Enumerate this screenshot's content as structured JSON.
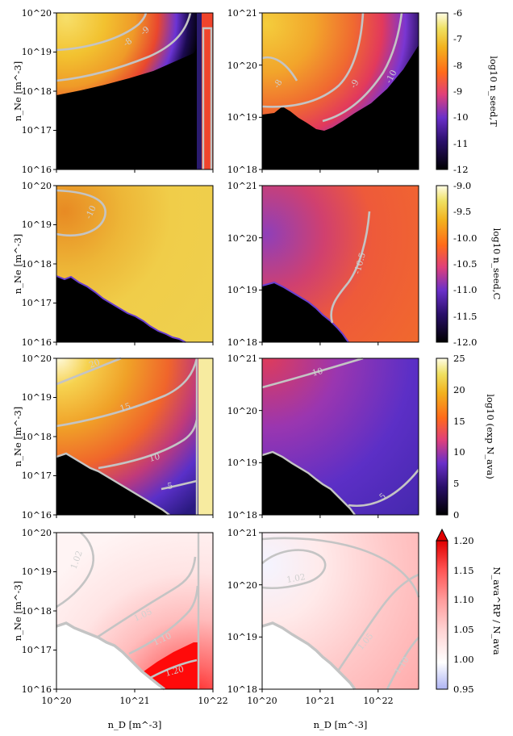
{
  "colors": {
    "contour": "#c4c4c4",
    "frame": "#000000",
    "masked": "#000000"
  },
  "chart_data": [
    {
      "type": "heatmap",
      "panel": "row1-left",
      "xlabel": "",
      "ylabel": "n_Ne [m^-3]",
      "xlim": [
        1e+20,
        1e+22
      ],
      "ylim": [
        1e+16,
        1e+20
      ],
      "ytick_labels": [
        "10^16",
        "10^17",
        "10^18",
        "10^19",
        "10^20"
      ],
      "contour_labels": [
        "-8",
        "-9"
      ]
    },
    {
      "type": "heatmap",
      "panel": "row1-right",
      "xlabel": "",
      "ylabel": "",
      "xlim": [
        1e+20,
        5e+22
      ],
      "ylim": [
        1e+18,
        1e+21
      ],
      "ytick_labels": [
        "10^18",
        "10^19",
        "10^20",
        "10^21"
      ],
      "contour_labels": [
        "-8",
        "-9",
        "-10"
      ]
    },
    {
      "type": "heatmap",
      "panel": "row2-left",
      "xlabel": "",
      "ylabel": "n_Ne [m^-3]",
      "xlim": [
        1e+20,
        1e+22
      ],
      "ylim": [
        1e+16,
        1e+20
      ],
      "ytick_labels": [
        "10^16",
        "10^17",
        "10^18",
        "10^19",
        "10^20"
      ],
      "contour_labels": [
        "-10"
      ]
    },
    {
      "type": "heatmap",
      "panel": "row2-right",
      "xlabel": "",
      "ylabel": "",
      "xlim": [
        1e+20,
        5e+22
      ],
      "ylim": [
        1e+18,
        1e+21
      ],
      "ytick_labels": [
        "10^18",
        "10^19",
        "10^20",
        "10^21"
      ],
      "contour_labels": [
        "-10.5"
      ]
    },
    {
      "type": "heatmap",
      "panel": "row3-left",
      "xlabel": "",
      "ylabel": "n_Ne [m^-3]",
      "xlim": [
        1e+20,
        1e+22
      ],
      "ylim": [
        1e+16,
        1e+20
      ],
      "ytick_labels": [
        "10^16",
        "10^17",
        "10^18",
        "10^19",
        "10^20"
      ],
      "contour_labels": [
        "20",
        "15",
        "10",
        "5"
      ]
    },
    {
      "type": "heatmap",
      "panel": "row3-right",
      "xlabel": "",
      "ylabel": "",
      "xlim": [
        1e+20,
        5e+22
      ],
      "ylim": [
        1e+18,
        1e+21
      ],
      "ytick_labels": [
        "10^18",
        "10^19",
        "10^20",
        "10^21"
      ],
      "contour_labels": [
        "10",
        "5"
      ]
    },
    {
      "type": "heatmap",
      "panel": "row4-left",
      "xlabel": "n_D [m^-3]",
      "ylabel": "n_Ne [m^-3]",
      "xlim": [
        1e+20,
        1e+22
      ],
      "ylim": [
        1e+16,
        1e+20
      ],
      "xtick_labels": [
        "10^20",
        "10^21",
        "10^22"
      ],
      "ytick_labels": [
        "10^16",
        "10^17",
        "10^18",
        "10^19",
        "10^20"
      ],
      "contour_labels": [
        "1.02",
        "1.05",
        "1.10",
        "1.20"
      ]
    },
    {
      "type": "heatmap",
      "panel": "row4-right",
      "xlabel": "n_D [m^-3]",
      "ylabel": "",
      "xlim": [
        1e+20,
        5e+22
      ],
      "ylim": [
        1e+18,
        1e+21
      ],
      "xtick_labels": [
        "10^20",
        "10^21",
        "10^22"
      ],
      "ytick_labels": [
        "10^18",
        "10^19",
        "10^20",
        "10^21"
      ],
      "contour_labels": [
        "1.02",
        "1.05",
        "1.10"
      ]
    }
  ],
  "colorbars": [
    {
      "label": "log10 n_seed,T",
      "range": [
        -12,
        -6
      ],
      "ticks": [
        "-6",
        "-7",
        "-8",
        "-9",
        "-10",
        "-11",
        "-12"
      ]
    },
    {
      "label": "log10 n_seed,C",
      "range": [
        -12.0,
        -9.0
      ],
      "ticks": [
        "-9.0",
        "-9.5",
        "-10.0",
        "-10.5",
        "-11.0",
        "-11.5",
        "-12.0"
      ]
    },
    {
      "label": "log10 (exp N_ava)",
      "range": [
        0,
        25
      ],
      "ticks": [
        "25",
        "20",
        "15",
        "10",
        "5",
        "0"
      ]
    },
    {
      "label": "N_ava^RP / N_ava",
      "range": [
        0.95,
        1.2
      ],
      "extend": "max",
      "ticks": [
        "1.20",
        "1.15",
        "1.10",
        "1.05",
        "1.00",
        "0.95"
      ]
    }
  ]
}
